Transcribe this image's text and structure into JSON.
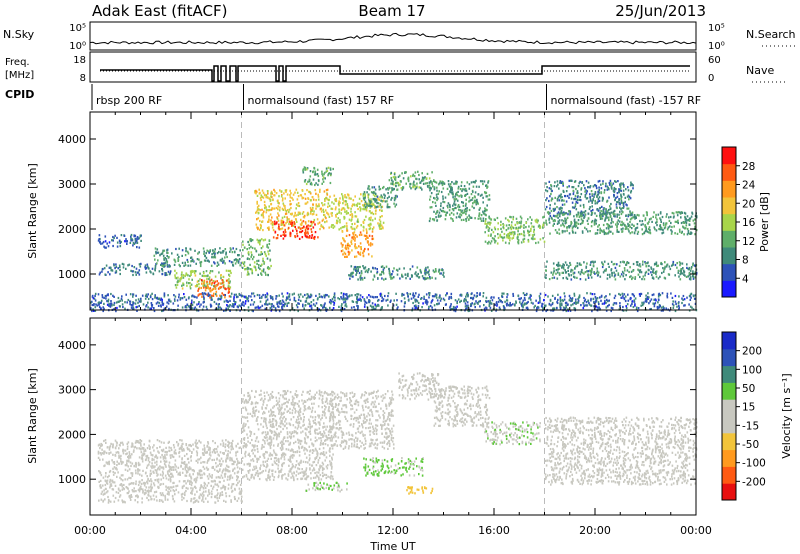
{
  "header": {
    "station": "Adak East (fitACF)",
    "beam": "Beam 17",
    "date": "25/Jun/2013"
  },
  "strips": {
    "nsky_label": "N.Sky",
    "nsky_ticks": [
      "10^5",
      "10^0"
    ],
    "nsearch_label": "N.Search",
    "nsearch_ticks": [
      "10^5",
      "10^0"
    ],
    "freq_label": [
      "Freq.",
      "[MHz]"
    ],
    "freq_ticks": [
      "18",
      "8"
    ],
    "nave_label": "Nave",
    "nave_ticks": [
      "60",
      "0"
    ],
    "cpid_label": "CPID",
    "cpid_segments": [
      {
        "start": 0.0,
        "end": 6.0,
        "label": "rbsp 200 RF"
      },
      {
        "start": 6.0,
        "end": 18.0,
        "label": "normalsound (fast) 157 RF"
      },
      {
        "start": 18.0,
        "end": 24.0,
        "label": "normalsound (fast) -157 RF"
      }
    ]
  },
  "colors": {
    "power": [
      "#1a1aff",
      "#2d52b8",
      "#3f8a7a",
      "#5fae69",
      "#a8d54a",
      "#f2c43a",
      "#ff9a1e",
      "#ff5a12",
      "#ff1010"
    ],
    "velocity": [
      "#e80f0f",
      "#ff5a12",
      "#ff9a1e",
      "#f2c43a",
      "#c8c8c0",
      "#c8c8c0",
      "#5ec83a",
      "#3f8a7a",
      "#2d52b8",
      "#1a2bc8"
    ]
  },
  "chart_data": [
    {
      "type": "heatmap",
      "title": "Power",
      "xlabel": "",
      "ylabel": "Slant Range [km]",
      "x_unit": "hours UT",
      "xlim": [
        0,
        24
      ],
      "ylim": [
        200,
        4600
      ],
      "xticks": [
        "00:00",
        "04:00",
        "08:00",
        "12:00",
        "16:00",
        "20:00",
        "00:00"
      ],
      "yticks": [
        "1000",
        "2000",
        "3000",
        "4000"
      ],
      "colorbar_label": "Power [dB]",
      "colorbar_ticks": [
        "4",
        "8",
        "12",
        "16",
        "20",
        "24",
        "28"
      ],
      "colorbar_range": [
        0,
        30
      ],
      "regions": [
        {
          "x": [
            0.3,
            3.2
          ],
          "y": [
            1000,
            1250
          ],
          "value": 7
        },
        {
          "x": [
            0.3,
            2.0
          ],
          "y": [
            1600,
            1900
          ],
          "value": 6
        },
        {
          "x": [
            2.5,
            6.0
          ],
          "y": [
            1200,
            1600
          ],
          "value": 9
        },
        {
          "x": [
            3.3,
            5.6
          ],
          "y": [
            700,
            1100
          ],
          "value": 14
        },
        {
          "x": [
            4.2,
            5.5
          ],
          "y": [
            500,
            900
          ],
          "value": 24
        },
        {
          "x": [
            6.0,
            7.2
          ],
          "y": [
            1000,
            1800
          ],
          "value": 12
        },
        {
          "x": [
            6.5,
            9.4
          ],
          "y": [
            2000,
            2900
          ],
          "value": 18
        },
        {
          "x": [
            7.2,
            9.0
          ],
          "y": [
            1800,
            2200
          ],
          "value": 27
        },
        {
          "x": [
            8.4,
            9.6
          ],
          "y": [
            3000,
            3400
          ],
          "value": 11
        },
        {
          "x": [
            9.4,
            11.6
          ],
          "y": [
            2000,
            2800
          ],
          "value": 16
        },
        {
          "x": [
            9.9,
            11.2
          ],
          "y": [
            1400,
            2000
          ],
          "value": 21
        },
        {
          "x": [
            10.8,
            12.2
          ],
          "y": [
            2500,
            3000
          ],
          "value": 9
        },
        {
          "x": [
            11.8,
            13.6
          ],
          "y": [
            2900,
            3300
          ],
          "value": 11
        },
        {
          "x": [
            13.4,
            15.8
          ],
          "y": [
            2200,
            3100
          ],
          "value": 10
        },
        {
          "x": [
            15.6,
            18.0
          ],
          "y": [
            1700,
            2300
          ],
          "value": 13
        },
        {
          "x": [
            10.2,
            14.0
          ],
          "y": [
            900,
            1200
          ],
          "value": 9
        },
        {
          "x": [
            18.0,
            21.5
          ],
          "y": [
            2300,
            3100
          ],
          "value": 8
        },
        {
          "x": [
            18.0,
            24.0
          ],
          "y": [
            1900,
            2400
          ],
          "value": 10
        },
        {
          "x": [
            18.0,
            24.0
          ],
          "y": [
            900,
            1300
          ],
          "value": 9
        },
        {
          "x": [
            0.0,
            24.0
          ],
          "y": [
            200,
            600
          ],
          "value": 6
        }
      ]
    },
    {
      "type": "heatmap",
      "title": "Velocity",
      "xlabel": "Time UT",
      "ylabel": "Slant Range [km]",
      "x_unit": "hours UT",
      "xlim": [
        0,
        24
      ],
      "ylim": [
        200,
        4600
      ],
      "xticks": [
        "00:00",
        "04:00",
        "08:00",
        "12:00",
        "16:00",
        "20:00",
        "00:00"
      ],
      "yticks": [
        "1000",
        "2000",
        "3000",
        "4000"
      ],
      "colorbar_label": "Velocity [m s^-1]",
      "colorbar_ticks": [
        "200",
        "100",
        "50",
        "15",
        "-15",
        "-50",
        "-100",
        "-200"
      ],
      "colorbar_range": [
        -250,
        250
      ],
      "regions": [
        {
          "x": [
            0.3,
            6.0
          ],
          "y": [
            500,
            1900
          ],
          "value": 0
        },
        {
          "x": [
            6.0,
            9.6
          ],
          "y": [
            1000,
            3000
          ],
          "value": 0
        },
        {
          "x": [
            9.4,
            12.0
          ],
          "y": [
            1700,
            3000
          ],
          "value": 0
        },
        {
          "x": [
            12.2,
            13.8
          ],
          "y": [
            2800,
            3400
          ],
          "value": 40
        },
        {
          "x": [
            13.6,
            15.8
          ],
          "y": [
            2200,
            3100
          ],
          "value": 40
        },
        {
          "x": [
            15.6,
            17.8
          ],
          "y": [
            1800,
            2300
          ],
          "value": 45
        },
        {
          "x": [
            10.8,
            13.2
          ],
          "y": [
            1100,
            1500
          ],
          "value": 55
        },
        {
          "x": [
            8.5,
            10.2
          ],
          "y": [
            750,
            950
          ],
          "value": 50
        },
        {
          "x": [
            12.5,
            13.6
          ],
          "y": [
            700,
            850
          ],
          "value": -60
        },
        {
          "x": [
            18.0,
            24.0
          ],
          "y": [
            900,
            2400
          ],
          "value": 0
        }
      ]
    }
  ]
}
